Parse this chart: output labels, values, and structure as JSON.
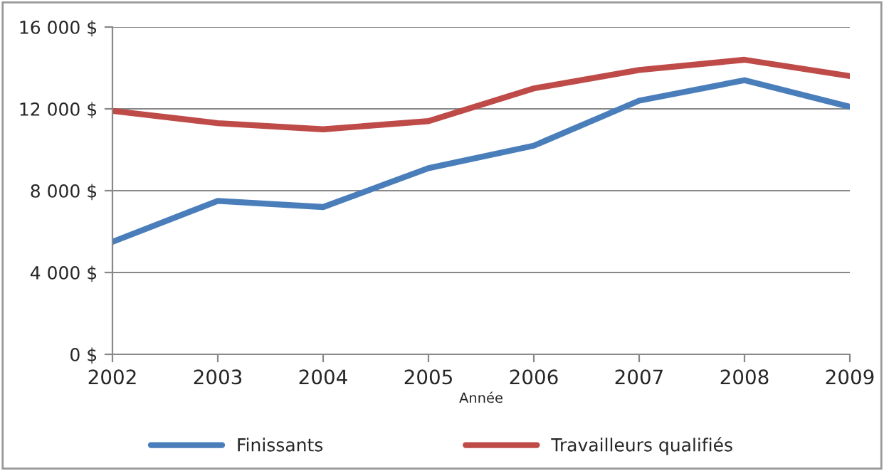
{
  "chart_data": {
    "type": "line",
    "xlabel": "Année",
    "x": [
      2002,
      2003,
      2004,
      2005,
      2006,
      2007,
      2008,
      2009
    ],
    "series": [
      {
        "name": "Finissants",
        "color": "#4a7ebb",
        "values": [
          5500,
          7500,
          7200,
          9100,
          10200,
          12400,
          13400,
          12100
        ]
      },
      {
        "name": "Travailleurs qualifiés",
        "color": "#be4b48",
        "values": [
          11900,
          11300,
          11000,
          11400,
          13000,
          13900,
          14400,
          13600
        ]
      }
    ],
    "xlim": [
      2002,
      2009
    ],
    "xticks": [
      2002,
      2003,
      2004,
      2005,
      2006,
      2007,
      2008,
      2009
    ],
    "ylim": [
      0,
      16000
    ],
    "yticks": [
      {
        "value": 0,
        "label": "0 $"
      },
      {
        "value": 4000,
        "label": "4 000 $"
      },
      {
        "value": 8000,
        "label": "8 000 $"
      },
      {
        "value": 12000,
        "label": "12 000 $"
      },
      {
        "value": 16000,
        "label": "16 000 $"
      }
    ],
    "grid": "y",
    "legend": "bottom",
    "marker": "none",
    "line_style": "solid"
  }
}
